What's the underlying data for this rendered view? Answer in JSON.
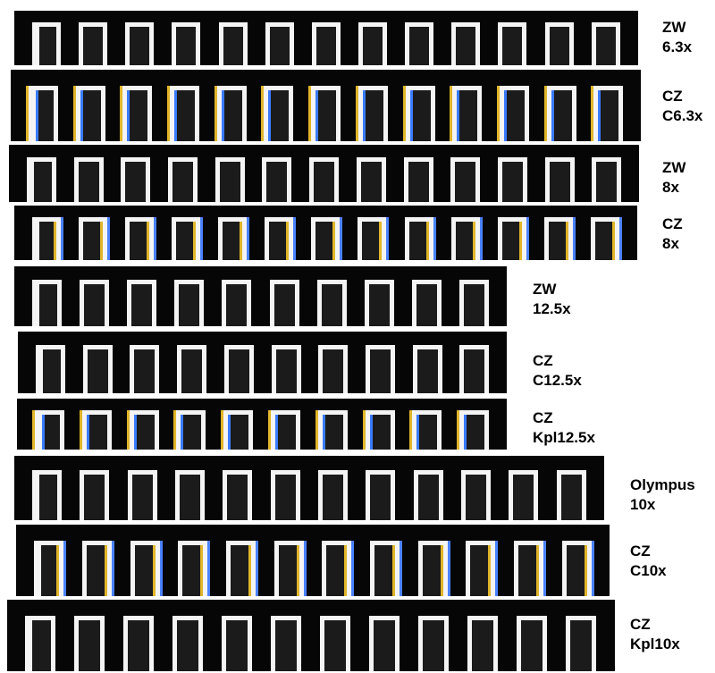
{
  "strips": [
    {
      "name": "ZW",
      "mag": "6.3x",
      "bars": 13,
      "fringe": "none"
    },
    {
      "name": "CZ",
      "mag": "C6.3x",
      "bars": 13,
      "fringe": "yellow-blue"
    },
    {
      "name": "ZW",
      "mag": "8x",
      "bars": 13,
      "fringe": "none"
    },
    {
      "name": "CZ",
      "mag": "8x",
      "bars": 13,
      "fringe": "blue-yellow"
    },
    {
      "name": "ZW",
      "mag": "12.5x",
      "bars": 10,
      "fringe": "none"
    },
    {
      "name": "CZ",
      "mag": "C12.5x",
      "bars": 10,
      "fringe": "none"
    },
    {
      "name": "CZ",
      "mag": "Kpl12.5x",
      "bars": 10,
      "fringe": "yellow-blue"
    },
    {
      "name": "Olympus",
      "mag": "10x",
      "bars": 12,
      "fringe": "none"
    },
    {
      "name": "CZ",
      "mag": "C10x",
      "bars": 12,
      "fringe": "blue-yellow"
    },
    {
      "name": "CZ",
      "mag": "Kpl10x",
      "bars": 12,
      "fringe": "none"
    }
  ]
}
